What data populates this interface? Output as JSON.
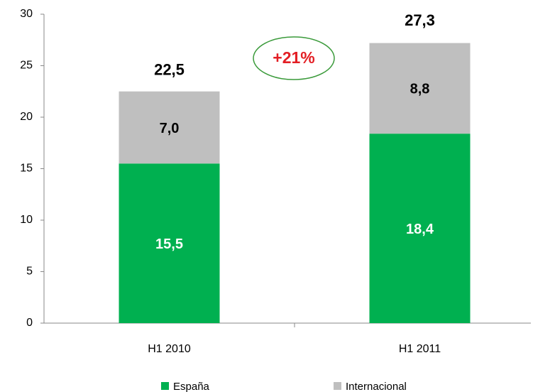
{
  "chart_data": {
    "type": "stacked_bar",
    "categories": [
      "H1 2010",
      "H1 2011"
    ],
    "series": [
      {
        "name": "España",
        "color": "#00b050",
        "values": [
          15.5,
          18.4
        ],
        "value_labels": [
          "15,5",
          "18,4"
        ]
      },
      {
        "name": "Internacional",
        "color": "#bfbfbf",
        "values": [
          7.0,
          8.8
        ],
        "value_labels": [
          "7,0",
          "8,8"
        ]
      }
    ],
    "totals": [
      22.5,
      27.3
    ],
    "total_labels": [
      "22,5",
      "27,3"
    ],
    "annotation": "+21%",
    "ylim": [
      0,
      30
    ],
    "yticks": [
      0,
      5,
      10,
      15,
      20,
      25,
      30
    ],
    "grid": false,
    "legend": "bottom"
  }
}
